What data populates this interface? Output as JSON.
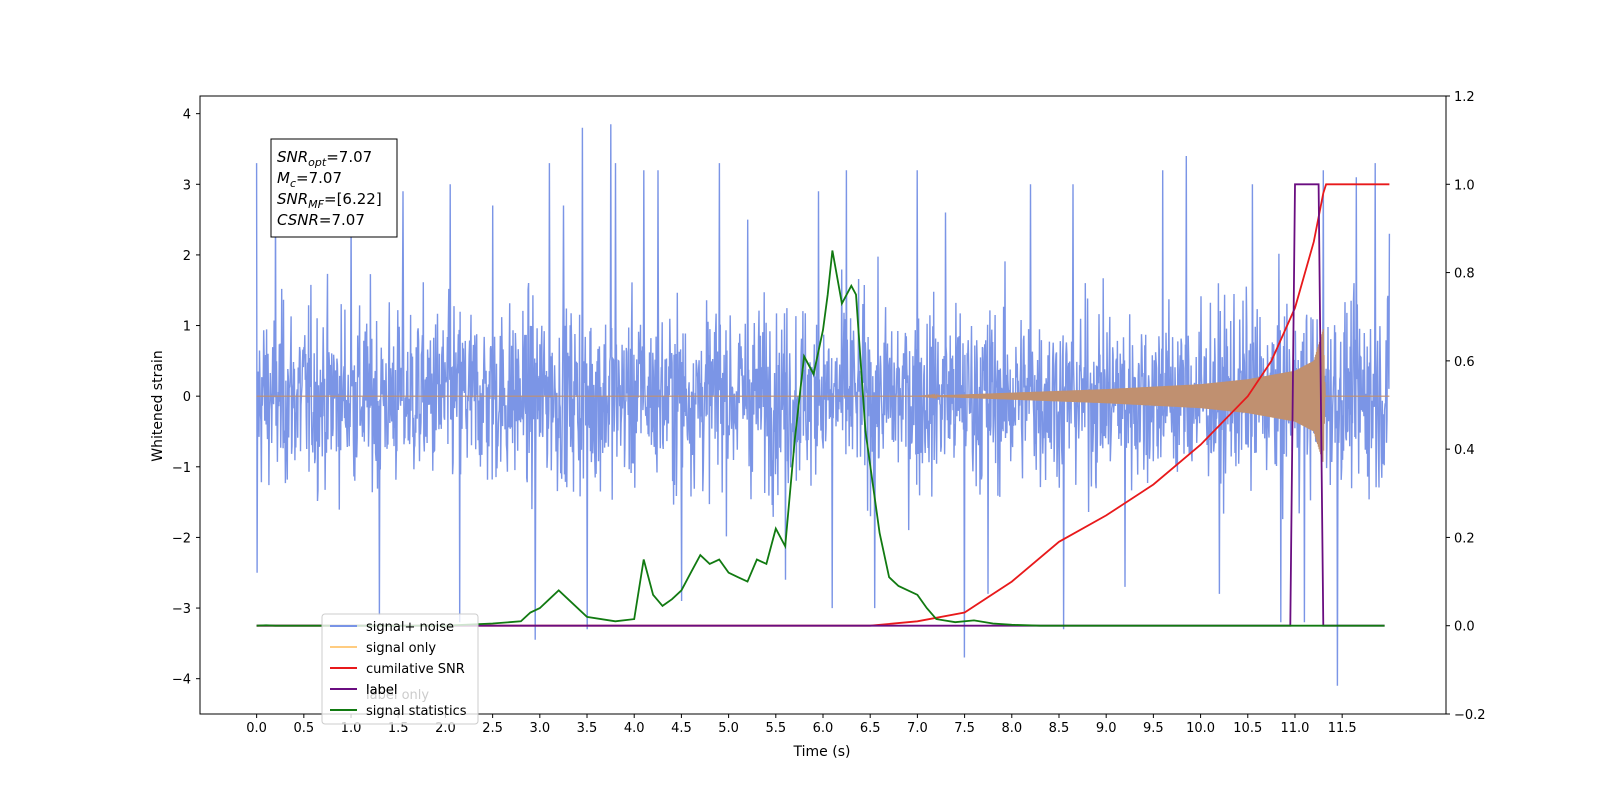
{
  "chart_data": {
    "type": "line",
    "xlabel": "Time (s)",
    "ylabel": "Whitened strain",
    "xlim": [
      -0.6,
      12.6
    ],
    "ylim": [
      -4.5,
      4.25
    ],
    "y2lim": [
      -0.2,
      1.2
    ],
    "x_ticks": [
      "0.0",
      "0.5",
      "1.0",
      "1.5",
      "2.0",
      "2.5",
      "3.0",
      "3.5",
      "4.0",
      "4.5",
      "5.0",
      "5.5",
      "6.0",
      "6.5",
      "7.0",
      "7.5",
      "8.0",
      "8.5",
      "9.0",
      "9.5",
      "10.0",
      "10.5",
      "11.0",
      "11.5"
    ],
    "y_ticks": [
      "4",
      "3",
      "2",
      "1",
      "0",
      "−1",
      "−2",
      "−3",
      "−4"
    ],
    "y2_ticks": [
      "1.2",
      "1.0",
      "0.8",
      "0.6",
      "0.4",
      "0.2",
      "0.0",
      "−0.2"
    ],
    "grid": false,
    "legend_position": "lower-left",
    "annotation": {
      "lines": [
        {
          "base": "SNR",
          "sub": "opt",
          "value": "=7.07"
        },
        {
          "base": "M",
          "sub": "c",
          "value": "=7.07"
        },
        {
          "base": "SNR",
          "sub": "MF",
          "value": "=[6.22]"
        },
        {
          "base": "CSNR",
          "sub": "",
          "value": "=7.07"
        }
      ]
    },
    "legend": [
      {
        "label": "signal+ noise",
        "color": "#7893e6"
      },
      {
        "label": "signal only",
        "color": "#ffcc80"
      },
      {
        "label": "cumilative SNR",
        "color": "#e8191b"
      },
      {
        "label": "label",
        "color": "#6a0d80"
      },
      {
        "label": "signal statistics",
        "color": "#117a11"
      }
    ],
    "legend_ghost_text": "label only",
    "series": [
      {
        "name": "signal+ noise",
        "axis": "left",
        "kind": "noise",
        "color": "#7893e6",
        "x_range": [
          0.0,
          12.0
        ],
        "typical_amplitude": [
          -1.9,
          2.0
        ],
        "peaks": [
          [
            0.0,
            3.3
          ],
          [
            0.0,
            -2.5
          ],
          [
            0.2,
            2.9
          ],
          [
            1.0,
            2.6
          ],
          [
            1.3,
            -3.1
          ],
          [
            1.55,
            2.9
          ],
          [
            2.05,
            3.0
          ],
          [
            2.15,
            -3.2
          ],
          [
            2.5,
            2.7
          ],
          [
            2.95,
            -3.45
          ],
          [
            3.1,
            3.3
          ],
          [
            3.25,
            2.7
          ],
          [
            3.45,
            3.8
          ],
          [
            3.5,
            -3.3
          ],
          [
            3.75,
            3.85
          ],
          [
            3.8,
            3.3
          ],
          [
            4.1,
            3.2
          ],
          [
            4.25,
            3.2
          ],
          [
            4.5,
            -2.9
          ],
          [
            4.9,
            3.3
          ],
          [
            5.2,
            2.5
          ],
          [
            5.6,
            -2.6
          ],
          [
            5.95,
            2.9
          ],
          [
            6.1,
            -3.0
          ],
          [
            6.25,
            3.2
          ],
          [
            6.55,
            -3.0
          ],
          [
            7.0,
            3.2
          ],
          [
            7.3,
            2.6
          ],
          [
            7.5,
            -3.7
          ],
          [
            7.75,
            -2.8
          ],
          [
            8.2,
            3.0
          ],
          [
            8.55,
            -3.3
          ],
          [
            8.65,
            3.0
          ],
          [
            9.2,
            -2.7
          ],
          [
            9.6,
            3.2
          ],
          [
            9.85,
            3.4
          ],
          [
            10.2,
            -2.8
          ],
          [
            10.55,
            3.0
          ],
          [
            10.85,
            -3.2
          ],
          [
            11.1,
            -3.2
          ],
          [
            11.3,
            3.2
          ],
          [
            11.45,
            -4.1
          ],
          [
            11.65,
            3.1
          ],
          [
            11.85,
            3.3
          ],
          [
            12.0,
            2.3
          ],
          [
            12.0,
            -1.9
          ]
        ]
      },
      {
        "name": "signal only",
        "axis": "left",
        "kind": "chirp",
        "color": "#c09070",
        "x_range": [
          0.0,
          12.0
        ],
        "envelope": [
          [
            0.0,
            0.0
          ],
          [
            7.0,
            0.0
          ],
          [
            8.0,
            0.05
          ],
          [
            9.0,
            0.1
          ],
          [
            10.0,
            0.17
          ],
          [
            10.5,
            0.24
          ],
          [
            11.0,
            0.36
          ],
          [
            11.2,
            0.5
          ],
          [
            11.3,
            0.95
          ],
          [
            11.32,
            0.0
          ],
          [
            12.0,
            0.0
          ]
        ]
      },
      {
        "name": "cumilative SNR",
        "axis": "right",
        "color": "#e8191b",
        "x": [
          0.0,
          6.5,
          7.0,
          7.5,
          8.0,
          8.5,
          9.0,
          9.5,
          10.0,
          10.5,
          10.75,
          11.0,
          11.2,
          11.3,
          11.33,
          11.5,
          11.75,
          12.0
        ],
        "values": [
          0.0,
          0.0,
          0.01,
          0.03,
          0.1,
          0.19,
          0.25,
          0.32,
          0.41,
          0.52,
          0.6,
          0.72,
          0.87,
          0.98,
          1.0,
          1.0,
          1.0,
          1.0
        ]
      },
      {
        "name": "label",
        "axis": "right",
        "color": "#6a0d80",
        "x": [
          0.0,
          10.95,
          11.0,
          11.25,
          11.3,
          11.95
        ],
        "values": [
          0.0,
          0.0,
          1.0,
          1.0,
          0.0,
          0.0
        ]
      },
      {
        "name": "signal statistics",
        "axis": "right",
        "color": "#117a11",
        "x": [
          0.0,
          0.1,
          0.2,
          2.0,
          2.5,
          2.8,
          2.9,
          3.0,
          3.1,
          3.2,
          3.3,
          3.5,
          3.8,
          4.0,
          4.1,
          4.2,
          4.3,
          4.4,
          4.5,
          4.6,
          4.7,
          4.8,
          4.9,
          5.0,
          5.1,
          5.2,
          5.3,
          5.4,
          5.5,
          5.6,
          5.7,
          5.8,
          5.9,
          6.0,
          6.05,
          6.1,
          6.2,
          6.3,
          6.35,
          6.45,
          6.6,
          6.7,
          6.8,
          6.9,
          7.0,
          7.1,
          7.2,
          7.4,
          7.6,
          7.8,
          8.0,
          8.3,
          9.0,
          10.0,
          11.0,
          11.95
        ],
        "values": [
          0.0,
          0.001,
          0.0,
          0.0,
          0.005,
          0.01,
          0.03,
          0.04,
          0.06,
          0.08,
          0.06,
          0.02,
          0.01,
          0.015,
          0.15,
          0.07,
          0.045,
          0.06,
          0.08,
          0.12,
          0.16,
          0.14,
          0.15,
          0.12,
          0.11,
          0.1,
          0.15,
          0.14,
          0.22,
          0.18,
          0.42,
          0.61,
          0.57,
          0.67,
          0.75,
          0.85,
          0.73,
          0.77,
          0.75,
          0.44,
          0.21,
          0.11,
          0.09,
          0.08,
          0.07,
          0.04,
          0.015,
          0.008,
          0.012,
          0.005,
          0.002,
          0.0,
          0.0,
          0.0,
          0.0,
          0.0
        ]
      }
    ]
  }
}
